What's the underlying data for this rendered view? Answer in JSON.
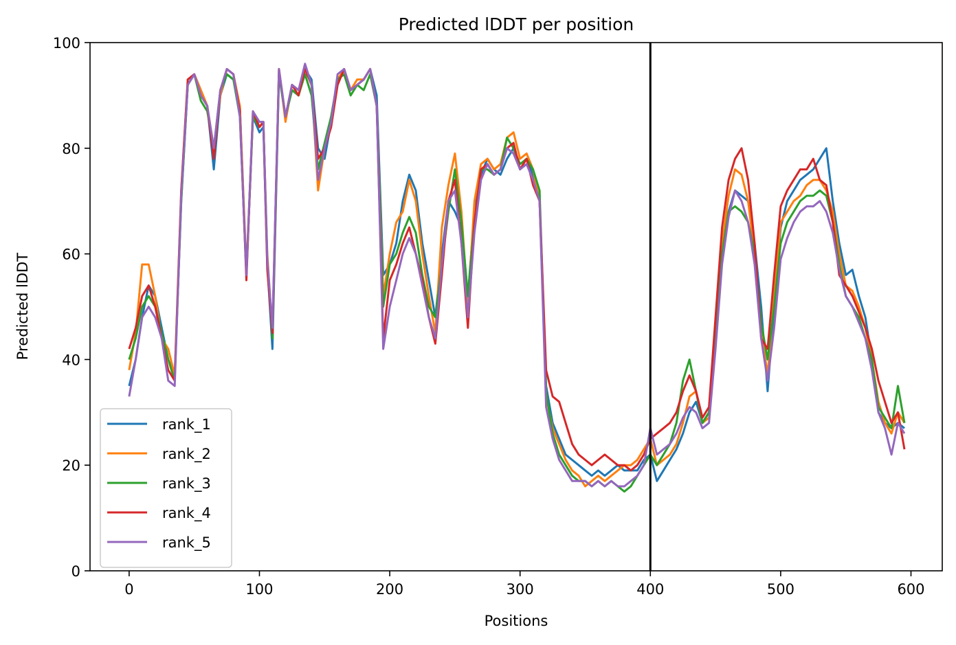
{
  "chart_data": {
    "type": "line",
    "title": "Predicted lDDT per position",
    "xlabel": "Positions",
    "ylabel": "Predicted lDDT",
    "xlim": [
      -30,
      624
    ],
    "ylim": [
      0,
      100
    ],
    "xticks": [
      0,
      100,
      200,
      300,
      400,
      500,
      600
    ],
    "yticks": [
      0,
      20,
      40,
      60,
      80,
      100
    ],
    "grid": false,
    "legend_position": "lower-left",
    "vline_x": 400,
    "series": [
      {
        "name": "rank_1",
        "color": "#1f77b4",
        "x": [
          0,
          5,
          10,
          15,
          20,
          25,
          30,
          35,
          40,
          45,
          50,
          55,
          60,
          65,
          70,
          75,
          80,
          85,
          90,
          95,
          100,
          103,
          106,
          110,
          115,
          120,
          125,
          130,
          135,
          140,
          145,
          150,
          155,
          160,
          165,
          170,
          175,
          180,
          185,
          190,
          195,
          200,
          205,
          210,
          215,
          220,
          225,
          230,
          235,
          240,
          245,
          250,
          255,
          260,
          265,
          270,
          275,
          280,
          285,
          290,
          295,
          300,
          305,
          310,
          315,
          320,
          325,
          330,
          335,
          340,
          345,
          350,
          355,
          360,
          365,
          370,
          375,
          380,
          385,
          390,
          395,
          400,
          405,
          410,
          415,
          420,
          425,
          430,
          435,
          440,
          445,
          450,
          455,
          460,
          465,
          470,
          475,
          480,
          485,
          490,
          495,
          500,
          505,
          510,
          515,
          520,
          525,
          530,
          535,
          540,
          545,
          550,
          555,
          560,
          565,
          570,
          575,
          580,
          585,
          590,
          595
        ],
        "y": [
          35,
          40,
          48,
          54,
          52,
          46,
          40,
          37,
          70,
          92,
          94,
          91,
          88,
          76,
          90,
          94,
          93,
          88,
          56,
          86,
          83,
          84,
          58,
          42,
          94,
          86,
          91,
          90,
          95,
          93,
          80,
          78,
          85,
          92,
          95,
          91,
          92,
          93,
          95,
          90,
          56,
          58,
          62,
          70,
          75,
          72,
          62,
          55,
          48,
          60,
          70,
          68,
          65,
          52,
          68,
          75,
          78,
          76,
          75,
          78,
          80,
          76,
          78,
          75,
          70,
          35,
          28,
          25,
          22,
          21,
          20,
          19,
          18,
          19,
          18,
          19,
          20,
          19,
          19,
          19,
          21,
          22,
          17,
          19,
          21,
          23,
          26,
          30,
          32,
          28,
          30,
          45,
          60,
          68,
          72,
          71,
          70,
          62,
          50,
          34,
          50,
          65,
          70,
          72,
          74,
          75,
          76,
          78,
          80,
          70,
          62,
          56,
          57,
          52,
          48,
          40,
          30,
          28,
          27,
          28,
          27
        ]
      },
      {
        "name": "rank_2",
        "color": "#ff7f0e",
        "x": [
          0,
          5,
          10,
          15,
          20,
          25,
          30,
          35,
          40,
          45,
          50,
          55,
          60,
          65,
          70,
          75,
          80,
          85,
          90,
          95,
          100,
          103,
          106,
          110,
          115,
          120,
          125,
          130,
          135,
          140,
          145,
          150,
          155,
          160,
          165,
          170,
          175,
          180,
          185,
          190,
          195,
          200,
          205,
          210,
          215,
          220,
          225,
          230,
          235,
          240,
          245,
          250,
          255,
          260,
          265,
          270,
          275,
          280,
          285,
          290,
          295,
          300,
          305,
          310,
          315,
          320,
          325,
          330,
          335,
          340,
          345,
          350,
          355,
          360,
          365,
          370,
          375,
          380,
          385,
          390,
          395,
          400,
          405,
          410,
          415,
          420,
          425,
          430,
          435,
          440,
          445,
          450,
          455,
          460,
          465,
          470,
          475,
          480,
          485,
          490,
          495,
          500,
          505,
          510,
          515,
          520,
          525,
          530,
          535,
          540,
          545,
          550,
          555,
          560,
          565,
          570,
          575,
          580,
          585,
          590,
          595
        ],
        "y": [
          38,
          45,
          58,
          58,
          52,
          44,
          42,
          37,
          72,
          93,
          94,
          91,
          88,
          80,
          90,
          95,
          94,
          88,
          57,
          86,
          84,
          85,
          60,
          45,
          95,
          85,
          92,
          91,
          95,
          92,
          72,
          80,
          86,
          93,
          95,
          91,
          93,
          93,
          95,
          88,
          52,
          60,
          66,
          68,
          74,
          70,
          60,
          52,
          45,
          65,
          73,
          79,
          68,
          50,
          70,
          77,
          78,
          76,
          77,
          82,
          83,
          78,
          79,
          76,
          70,
          33,
          27,
          24,
          21,
          19,
          18,
          16,
          17,
          18,
          17,
          18,
          19,
          20,
          20,
          21,
          23,
          25,
          20,
          21,
          22,
          24,
          28,
          33,
          34,
          28,
          29,
          44,
          62,
          71,
          76,
          75,
          70,
          60,
          46,
          37,
          52,
          66,
          68,
          70,
          71,
          73,
          74,
          74,
          72,
          68,
          60,
          54,
          53,
          50,
          46,
          40,
          32,
          28,
          26,
          30,
          28
        ]
      },
      {
        "name": "rank_3",
        "color": "#2ca02c",
        "x": [
          0,
          5,
          10,
          15,
          20,
          25,
          30,
          35,
          40,
          45,
          50,
          55,
          60,
          65,
          70,
          75,
          80,
          85,
          90,
          95,
          100,
          103,
          106,
          110,
          115,
          120,
          125,
          130,
          135,
          140,
          145,
          150,
          155,
          160,
          165,
          170,
          175,
          180,
          185,
          190,
          195,
          200,
          205,
          210,
          215,
          220,
          225,
          230,
          235,
          240,
          245,
          250,
          255,
          260,
          265,
          270,
          275,
          280,
          285,
          290,
          295,
          300,
          305,
          310,
          315,
          320,
          325,
          330,
          335,
          340,
          345,
          350,
          355,
          360,
          365,
          370,
          375,
          380,
          385,
          390,
          395,
          400,
          405,
          410,
          415,
          420,
          425,
          430,
          435,
          440,
          445,
          450,
          455,
          460,
          465,
          470,
          475,
          480,
          485,
          490,
          495,
          500,
          505,
          510,
          515,
          520,
          525,
          530,
          535,
          540,
          545,
          550,
          555,
          560,
          565,
          570,
          575,
          580,
          585,
          590,
          595
        ],
        "y": [
          40,
          44,
          50,
          52,
          50,
          45,
          40,
          36,
          70,
          92,
          94,
          89,
          87,
          80,
          91,
          94,
          93,
          86,
          56,
          86,
          84,
          85,
          59,
          44,
          94,
          86,
          91,
          90,
          94,
          90,
          76,
          81,
          86,
          93,
          94,
          90,
          92,
          91,
          94,
          88,
          50,
          58,
          60,
          64,
          67,
          64,
          56,
          50,
          48,
          58,
          68,
          76,
          66,
          52,
          66,
          76,
          76,
          75,
          76,
          82,
          80,
          77,
          78,
          76,
          72,
          34,
          26,
          22,
          20,
          18,
          17,
          17,
          16,
          17,
          16,
          17,
          16,
          15,
          16,
          18,
          20,
          22,
          20,
          22,
          24,
          28,
          36,
          40,
          34,
          28,
          30,
          46,
          60,
          68,
          69,
          68,
          66,
          60,
          47,
          40,
          50,
          62,
          66,
          68,
          70,
          71,
          71,
          72,
          71,
          66,
          58,
          52,
          50,
          48,
          44,
          40,
          31,
          29,
          27,
          35,
          28
        ]
      },
      {
        "name": "rank_4",
        "color": "#d62728",
        "x": [
          0,
          5,
          10,
          15,
          20,
          25,
          30,
          35,
          40,
          45,
          50,
          55,
          60,
          65,
          70,
          75,
          80,
          85,
          90,
          95,
          100,
          103,
          106,
          110,
          115,
          120,
          125,
          130,
          135,
          140,
          145,
          150,
          155,
          160,
          165,
          170,
          175,
          180,
          185,
          190,
          195,
          200,
          205,
          210,
          215,
          220,
          225,
          230,
          235,
          240,
          245,
          250,
          255,
          260,
          265,
          270,
          275,
          280,
          285,
          290,
          295,
          300,
          305,
          310,
          315,
          320,
          325,
          330,
          335,
          340,
          345,
          350,
          355,
          360,
          365,
          370,
          375,
          380,
          385,
          390,
          395,
          400,
          405,
          410,
          415,
          420,
          425,
          430,
          435,
          440,
          445,
          450,
          455,
          460,
          465,
          470,
          475,
          480,
          485,
          490,
          495,
          500,
          505,
          510,
          515,
          520,
          525,
          530,
          535,
          540,
          545,
          550,
          555,
          560,
          565,
          570,
          575,
          580,
          585,
          590,
          595
        ],
        "y": [
          42,
          46,
          52,
          54,
          50,
          44,
          38,
          36,
          72,
          93,
          94,
          90,
          88,
          78,
          91,
          95,
          94,
          87,
          55,
          87,
          84,
          85,
          57,
          45,
          95,
          86,
          92,
          90,
          95,
          92,
          78,
          80,
          84,
          92,
          95,
          91,
          92,
          93,
          95,
          88,
          44,
          55,
          58,
          62,
          65,
          60,
          55,
          48,
          43,
          56,
          70,
          74,
          62,
          46,
          66,
          76,
          77,
          75,
          76,
          80,
          81,
          76,
          78,
          73,
          70,
          38,
          33,
          32,
          28,
          24,
          22,
          21,
          20,
          21,
          22,
          21,
          20,
          20,
          19,
          20,
          22,
          25,
          26,
          27,
          28,
          30,
          34,
          37,
          34,
          29,
          31,
          48,
          65,
          74,
          78,
          80,
          74,
          62,
          44,
          42,
          56,
          69,
          72,
          74,
          76,
          76,
          78,
          74,
          73,
          66,
          56,
          54,
          52,
          49,
          46,
          42,
          36,
          32,
          28,
          30,
          23
        ]
      },
      {
        "name": "rank_5",
        "color": "#9467bd",
        "x": [
          0,
          5,
          10,
          15,
          20,
          25,
          30,
          35,
          40,
          45,
          50,
          55,
          60,
          65,
          70,
          75,
          80,
          85,
          90,
          95,
          100,
          103,
          106,
          110,
          115,
          120,
          125,
          130,
          135,
          140,
          145,
          150,
          155,
          160,
          165,
          170,
          175,
          180,
          185,
          190,
          195,
          200,
          205,
          210,
          215,
          220,
          225,
          230,
          235,
          240,
          245,
          250,
          255,
          260,
          265,
          270,
          275,
          280,
          285,
          290,
          295,
          300,
          305,
          310,
          315,
          320,
          325,
          330,
          335,
          340,
          345,
          350,
          355,
          360,
          365,
          370,
          375,
          380,
          385,
          390,
          395,
          400,
          405,
          410,
          415,
          420,
          425,
          430,
          435,
          440,
          445,
          450,
          455,
          460,
          465,
          470,
          475,
          480,
          485,
          490,
          495,
          500,
          505,
          510,
          515,
          520,
          525,
          530,
          535,
          540,
          545,
          550,
          555,
          560,
          565,
          570,
          575,
          580,
          585,
          590,
          595
        ],
        "y": [
          33,
          40,
          48,
          50,
          48,
          44,
          36,
          35,
          71,
          92,
          94,
          90,
          88,
          80,
          91,
          95,
          94,
          86,
          56,
          87,
          85,
          85,
          59,
          46,
          95,
          86,
          92,
          91,
          96,
          92,
          74,
          80,
          85,
          94,
          95,
          91,
          92,
          93,
          95,
          88,
          42,
          50,
          55,
          60,
          63,
          60,
          54,
          48,
          44,
          58,
          70,
          72,
          62,
          48,
          64,
          74,
          77,
          75,
          76,
          80,
          79,
          76,
          77,
          74,
          70,
          31,
          25,
          21,
          19,
          17,
          17,
          17,
          16,
          17,
          16,
          17,
          16,
          16,
          17,
          18,
          20,
          27,
          22,
          23,
          24,
          26,
          29,
          31,
          30,
          27,
          28,
          42,
          58,
          67,
          72,
          70,
          66,
          58,
          44,
          36,
          46,
          59,
          63,
          66,
          68,
          69,
          69,
          70,
          68,
          64,
          57,
          52,
          50,
          47,
          44,
          38,
          30,
          27,
          22,
          28,
          26
        ]
      }
    ]
  }
}
